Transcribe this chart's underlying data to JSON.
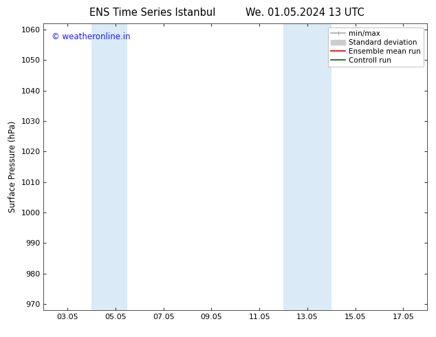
{
  "title_left": "ENS Time Series Istanbul",
  "title_right": "We. 01.05.2024 13 UTC",
  "ylabel": "Surface Pressure (hPa)",
  "ylim": [
    968,
    1062
  ],
  "yticks": [
    970,
    980,
    990,
    1000,
    1010,
    1020,
    1030,
    1040,
    1050,
    1060
  ],
  "xlim": [
    0,
    16
  ],
  "xtick_positions": [
    1,
    3,
    5,
    7,
    9,
    11,
    13,
    15
  ],
  "xtick_labels": [
    "03.05",
    "05.05",
    "07.05",
    "09.05",
    "11.05",
    "13.05",
    "15.05",
    "17.05"
  ],
  "shaded_bands": [
    {
      "x_start": 2.0,
      "x_end": 3.5
    },
    {
      "x_start": 10.0,
      "x_end": 12.0
    }
  ],
  "shade_color": "#daeaf6",
  "watermark_text": "© weatheronline.in",
  "watermark_color": "#1a1aff",
  "legend_entries": [
    {
      "label": "min/max",
      "color": "#aaaaaa",
      "lw": 1.2
    },
    {
      "label": "Standard deviation",
      "color": "#cccccc",
      "lw": 5
    },
    {
      "label": "Ensemble mean run",
      "color": "#cc0000",
      "lw": 1.2
    },
    {
      "label": "Controll run",
      "color": "#006600",
      "lw": 1.2
    }
  ],
  "bg_color": "#ffffff",
  "title_fontsize": 10.5,
  "tick_fontsize": 8,
  "ylabel_fontsize": 8.5,
  "legend_fontsize": 7.5,
  "watermark_fontsize": 8.5
}
